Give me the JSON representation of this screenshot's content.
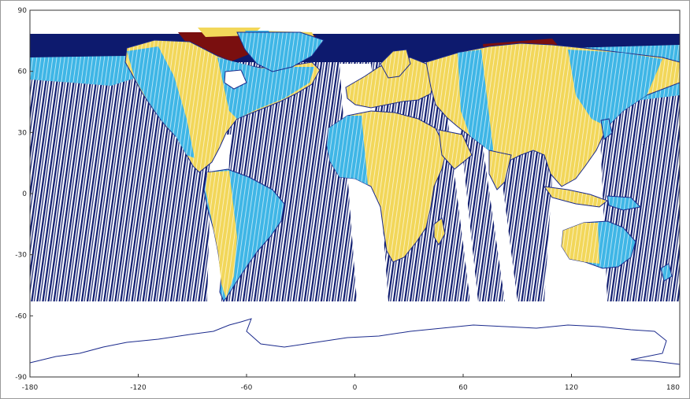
{
  "map": {
    "xlim": [
      -180,
      180
    ],
    "ylim": [
      -90,
      90
    ],
    "x_ticks": [
      {
        "value": -180,
        "label": "-180"
      },
      {
        "value": -120,
        "label": "-120"
      },
      {
        "value": -60,
        "label": "-60"
      },
      {
        "value": 0,
        "label": "0"
      },
      {
        "value": 60,
        "label": "60"
      },
      {
        "value": 120,
        "label": "120"
      },
      {
        "value": 180,
        "label": "180"
      }
    ],
    "y_ticks": [
      {
        "value": 90,
        "label": "90"
      },
      {
        "value": 60,
        "label": "60"
      },
      {
        "value": 30,
        "label": "30"
      },
      {
        "value": 0,
        "label": "0"
      },
      {
        "value": -30,
        "label": "-30"
      },
      {
        "value": -60,
        "label": "-60"
      },
      {
        "value": -90,
        "label": "-90"
      }
    ],
    "coverage_lat_range": [
      -54,
      80
    ],
    "colors": {
      "swath_lines": "#0d1a6e",
      "coastline": "#1b2a8c",
      "land_yellow": "#f2d75a",
      "light_blue": "#3fb6e6",
      "dark_red": "#7a0f0f",
      "dark_blue_fill": "#0d1a6e"
    }
  }
}
